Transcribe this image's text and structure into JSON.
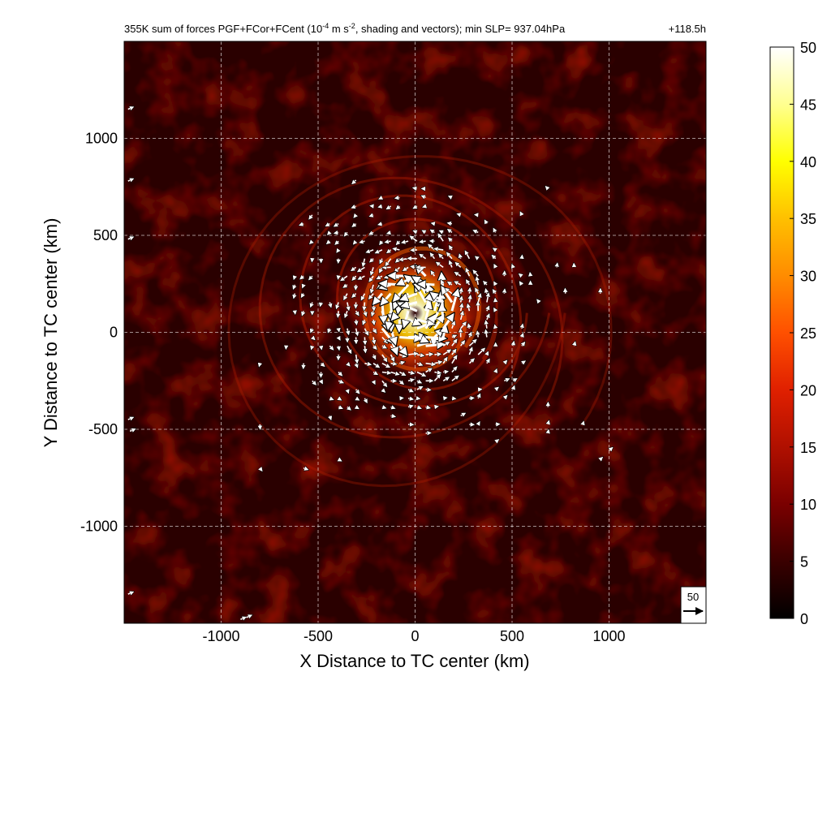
{
  "chart_data": {
    "type": "heatmap",
    "title": "355K sum of forces PGF+FCor+FCent (10",
    "title_sup1": "-4",
    "title_mid": " m s",
    "title_sup2": "-2",
    "title_tail": ", shading and vectors); min SLP= 937.04hPa",
    "time_label": "+118.5h",
    "xlabel": "X Distance to TC center (km)",
    "ylabel": "Y Distance to TC center (km)",
    "xlim": [
      -1500,
      1500
    ],
    "ylim": [
      -1500,
      1500
    ],
    "x_ticks": [
      -1000,
      -500,
      0,
      500,
      1000
    ],
    "y_ticks": [
      -1000,
      -500,
      0,
      500,
      1000
    ],
    "x_tick_labels": [
      "-1000",
      "-500",
      "0",
      "500",
      "1000"
    ],
    "y_tick_labels": [
      "-1000",
      "-500",
      "0",
      "500",
      "1000"
    ],
    "grid": true,
    "colorbar": {
      "min": 0,
      "max": 50,
      "ticks": [
        0,
        5,
        10,
        15,
        20,
        25,
        30,
        35,
        40,
        45,
        50
      ],
      "tick_labels": [
        "0",
        "5",
        "10",
        "15",
        "20",
        "25",
        "30",
        "35",
        "40",
        "45",
        "50"
      ],
      "colors": [
        "#000000",
        "#3a0000",
        "#7a0000",
        "#b01000",
        "#e02000",
        "#ff5000",
        "#ff8c00",
        "#ffc000",
        "#ffff00",
        "#ffff90",
        "#ffffff"
      ]
    },
    "reference_vector": {
      "value": 50,
      "label": "50"
    },
    "structure": {
      "center": [
        0,
        100
      ],
      "eye_radius_km": 60,
      "max_magnitude_near_center": 50,
      "spiral_bands_radii_km": [
        250,
        380,
        520,
        680,
        850
      ]
    }
  }
}
